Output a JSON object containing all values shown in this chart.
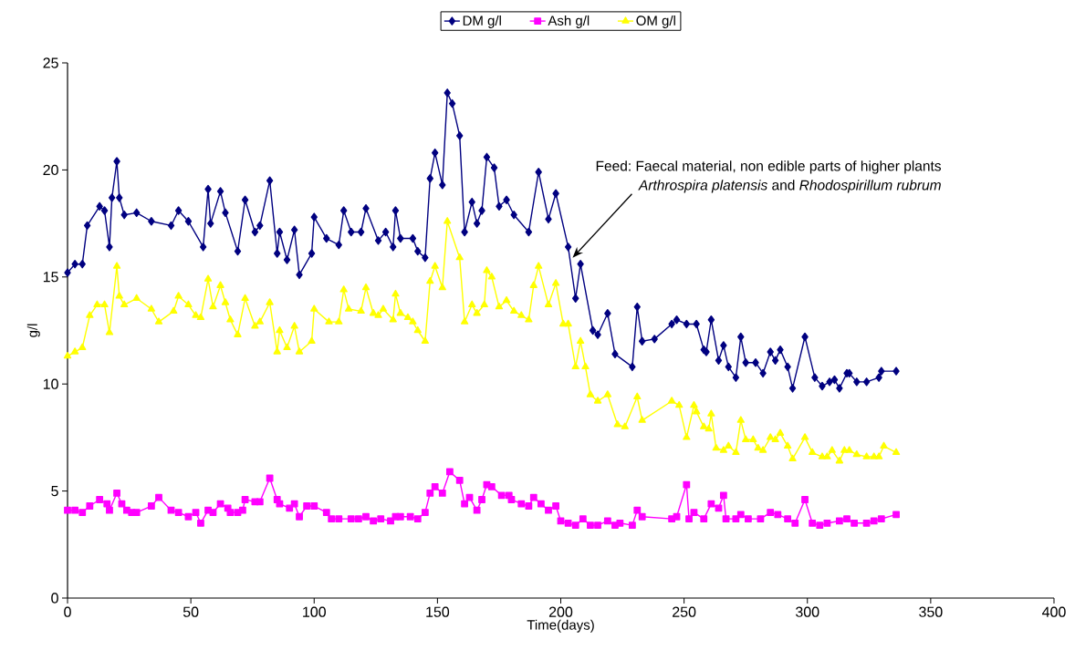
{
  "chart_data": {
    "type": "line",
    "xlabel": "Time(days)",
    "ylabel": "g/l",
    "xlim": [
      0,
      400
    ],
    "xticks": [
      0,
      50,
      100,
      150,
      200,
      250,
      300,
      350,
      400
    ],
    "ylim": [
      0,
      25
    ],
    "yticks": [
      0,
      5,
      10,
      15,
      20,
      25
    ],
    "legend": "top",
    "grid": false,
    "annotations": [
      "Feed: Faecal material, non edible parts of higher plants *Arthrospira platensis* and *Rhodospirillum rubrum*"
    ],
    "series": [
      {
        "name": "DM g/l",
        "color": "#000080",
        "marker": "diamond",
        "x": [
          0,
          3,
          6,
          8,
          13,
          15,
          17,
          18,
          20,
          21,
          23,
          28,
          34,
          42,
          45,
          49,
          55,
          57,
          58,
          62,
          64,
          69,
          72,
          76,
          78,
          82,
          85,
          86,
          89,
          92,
          94,
          99,
          100,
          105,
          110,
          112,
          115,
          119,
          121,
          126,
          129,
          132,
          133,
          135,
          140,
          142,
          145,
          147,
          149,
          152,
          154,
          156,
          159,
          161,
          164,
          166,
          168,
          170,
          173,
          175,
          178,
          181,
          187,
          191,
          195,
          198,
          203,
          206,
          208,
          213,
          215,
          219,
          222,
          229,
          231,
          233,
          238,
          245,
          247,
          251,
          255,
          258,
          259,
          261,
          264,
          266,
          268,
          271,
          273,
          275,
          279,
          282,
          285,
          287,
          289,
          292,
          294,
          299,
          303,
          306,
          309,
          311,
          313,
          316,
          317,
          320,
          324,
          329,
          330,
          336
        ],
        "values": [
          15.2,
          15.6,
          15.6,
          17.4,
          18.3,
          18.1,
          16.4,
          18.7,
          20.4,
          18.7,
          17.9,
          18.0,
          17.6,
          17.4,
          18.1,
          17.6,
          16.4,
          19.1,
          17.5,
          19.0,
          18.0,
          16.2,
          18.6,
          17.1,
          17.4,
          19.5,
          16.1,
          17.1,
          15.8,
          17.2,
          15.1,
          16.1,
          17.8,
          16.8,
          16.5,
          18.1,
          17.1,
          17.1,
          18.2,
          16.7,
          17.1,
          16.4,
          18.1,
          16.8,
          16.8,
          16.2,
          15.9,
          19.6,
          20.8,
          19.3,
          23.6,
          23.1,
          21.6,
          17.1,
          18.5,
          17.5,
          18.1,
          20.6,
          20.1,
          18.3,
          18.6,
          17.9,
          17.1,
          19.9,
          17.7,
          18.9,
          16.4,
          14.0,
          15.6,
          12.5,
          12.3,
          13.3,
          11.4,
          10.8,
          13.6,
          12.0,
          12.1,
          12.8,
          13.0,
          12.8,
          12.8,
          11.6,
          11.5,
          13.0,
          11.1,
          11.8,
          10.8,
          10.3,
          12.2,
          11.0,
          11.0,
          10.5,
          11.5,
          11.1,
          11.6,
          10.8,
          9.8,
          12.2,
          10.3,
          9.9,
          10.1,
          10.2,
          9.8,
          10.5,
          10.5,
          10.1,
          10.1,
          10.3,
          10.6,
          10.6
        ]
      },
      {
        "name": "Ash g/l",
        "color": "#ff00ff",
        "marker": "square",
        "x": [
          0,
          3,
          6,
          9,
          13,
          16,
          17,
          20,
          22,
          24,
          26,
          28,
          34,
          37,
          42,
          45,
          49,
          52,
          54,
          57,
          59,
          62,
          65,
          66,
          69,
          71,
          72,
          76,
          78,
          82,
          85,
          86,
          90,
          92,
          94,
          97,
          100,
          105,
          107,
          110,
          115,
          118,
          121,
          124,
          127,
          131,
          133,
          135,
          139,
          142,
          145,
          147,
          149,
          152,
          155,
          159,
          161,
          163,
          166,
          168,
          170,
          172,
          176,
          179,
          180,
          184,
          187,
          189,
          192,
          195,
          198,
          200,
          203,
          206,
          209,
          212,
          215,
          219,
          222,
          224,
          229,
          231,
          233,
          245,
          247,
          251,
          252,
          254,
          258,
          261,
          264,
          266,
          267,
          271,
          273,
          276,
          281,
          285,
          288,
          292,
          295,
          299,
          302,
          305,
          308,
          313,
          316,
          319,
          324,
          327,
          330,
          336
        ],
        "values": [
          4.1,
          4.1,
          4.0,
          4.3,
          4.6,
          4.4,
          4.1,
          4.9,
          4.4,
          4.1,
          4.0,
          4.0,
          4.3,
          4.7,
          4.1,
          4.0,
          3.8,
          4.0,
          3.5,
          4.1,
          4.0,
          4.4,
          4.2,
          4.0,
          4.0,
          4.1,
          4.6,
          4.5,
          4.5,
          5.6,
          4.6,
          4.4,
          4.2,
          4.4,
          3.8,
          4.3,
          4.3,
          4.0,
          3.7,
          3.7,
          3.7,
          3.7,
          3.8,
          3.6,
          3.7,
          3.6,
          3.8,
          3.8,
          3.8,
          3.7,
          4.0,
          4.9,
          5.2,
          4.9,
          5.9,
          5.5,
          4.4,
          4.7,
          4.1,
          4.6,
          5.3,
          5.2,
          4.8,
          4.8,
          4.6,
          4.4,
          4.3,
          4.7,
          4.4,
          4.1,
          4.3,
          3.6,
          3.5,
          3.4,
          3.7,
          3.4,
          3.4,
          3.6,
          3.4,
          3.5,
          3.4,
          4.1,
          3.8,
          3.7,
          3.8,
          5.3,
          3.7,
          4.0,
          3.7,
          4.4,
          4.2,
          4.8,
          3.7,
          3.7,
          3.9,
          3.7,
          3.7,
          4.0,
          3.9,
          3.7,
          3.5,
          4.6,
          3.5,
          3.4,
          3.5,
          3.6,
          3.7,
          3.5,
          3.5,
          3.6,
          3.7,
          3.9
        ]
      },
      {
        "name": "OM g/l",
        "color": "#ffff00",
        "marker": "triangle",
        "x": [
          0,
          3,
          6,
          9,
          12,
          15,
          17,
          20,
          21,
          23,
          28,
          34,
          37,
          43,
          45,
          49,
          52,
          54,
          57,
          59,
          62,
          64,
          66,
          69,
          72,
          76,
          78,
          82,
          85,
          86,
          89,
          92,
          94,
          99,
          100,
          106,
          110,
          112,
          114,
          119,
          121,
          124,
          126,
          128,
          132,
          133,
          135,
          138,
          140,
          142,
          145,
          147,
          149,
          152,
          154,
          159,
          161,
          164,
          166,
          169,
          170,
          172,
          175,
          178,
          181,
          184,
          187,
          189,
          191,
          195,
          198,
          201,
          203,
          206,
          208,
          210,
          212,
          215,
          219,
          223,
          226,
          231,
          233,
          245,
          248,
          251,
          254,
          255,
          258,
          260,
          261,
          263,
          266,
          268,
          271,
          273,
          275,
          278,
          280,
          282,
          285,
          287,
          289,
          292,
          294,
          299,
          302,
          306,
          308,
          310,
          313,
          315,
          317,
          320,
          324,
          327,
          329,
          331,
          336
        ],
        "values": [
          11.3,
          11.5,
          11.7,
          13.2,
          13.7,
          13.7,
          12.4,
          15.5,
          14.1,
          13.7,
          14.0,
          13.5,
          12.9,
          13.4,
          14.1,
          13.7,
          13.2,
          13.1,
          14.9,
          13.6,
          14.6,
          13.8,
          13.0,
          12.3,
          14.0,
          12.7,
          12.9,
          13.8,
          11.5,
          12.5,
          11.7,
          12.7,
          11.5,
          12.0,
          13.5,
          12.9,
          12.9,
          14.4,
          13.5,
          13.4,
          14.5,
          13.3,
          13.2,
          13.5,
          13.0,
          14.2,
          13.3,
          13.1,
          12.9,
          12.5,
          12.0,
          14.8,
          15.5,
          14.5,
          17.6,
          15.9,
          12.9,
          13.7,
          13.3,
          13.7,
          15.3,
          15.0,
          13.6,
          13.9,
          13.4,
          13.2,
          13.0,
          14.6,
          15.5,
          13.7,
          14.7,
          12.8,
          12.8,
          10.8,
          12.0,
          10.8,
          9.5,
          9.2,
          9.5,
          8.1,
          8.0,
          9.4,
          8.3,
          9.2,
          9.0,
          7.5,
          9.0,
          8.7,
          8.0,
          7.9,
          8.6,
          7.0,
          6.9,
          7.1,
          6.8,
          8.3,
          7.4,
          7.4,
          7.0,
          6.9,
          7.5,
          7.4,
          7.7,
          7.1,
          6.5,
          7.5,
          6.8,
          6.6,
          6.6,
          6.9,
          6.4,
          6.9,
          6.9,
          6.7,
          6.6,
          6.6,
          6.6,
          7.1,
          6.8
        ]
      }
    ]
  }
}
